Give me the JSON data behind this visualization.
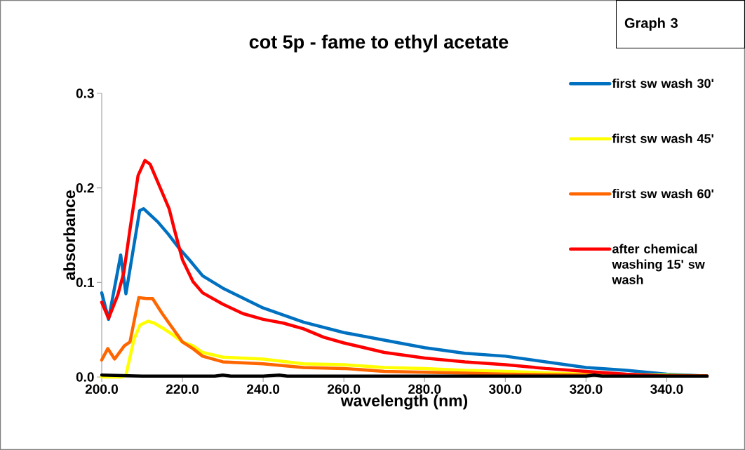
{
  "chart_data": {
    "type": "line",
    "title": "cot 5p - fame to ethyl acetate",
    "xlabel": "wavelength (nm)",
    "ylabel": "absorbance",
    "annotations": [
      "Graph 3"
    ],
    "xlim": [
      200,
      350
    ],
    "ylim": [
      0,
      0.3
    ],
    "xticks": [
      {
        "value": 200,
        "label": "200.0"
      },
      {
        "value": 220,
        "label": "220.0"
      },
      {
        "value": 240,
        "label": "240.0"
      },
      {
        "value": 260,
        "label": "260.0"
      },
      {
        "value": 280,
        "label": "280.0"
      },
      {
        "value": 300,
        "label": "300.0"
      },
      {
        "value": 320,
        "label": "320.0"
      },
      {
        "value": 340,
        "label": "340.0"
      }
    ],
    "yticks": [
      {
        "value": 0,
        "label": "0.0"
      },
      {
        "value": 0.1,
        "label": "0.1"
      },
      {
        "value": 0.2,
        "label": "0.2"
      },
      {
        "value": 0.3,
        "label": "0.3"
      }
    ],
    "grid": false,
    "legend": "top right",
    "marker": "none",
    "line_style": "solid",
    "series": [
      {
        "name": "first sw wash 30'",
        "color": "#0070c0",
        "x": [
          200,
          201.7,
          204.7,
          206,
          209.4,
          210.4,
          213.9,
          216.5,
          219,
          221.7,
          225,
          230,
          240,
          250,
          260,
          270,
          280,
          290,
          300,
          310,
          320,
          330,
          340,
          350
        ],
        "values": [
          0.089,
          0.061,
          0.129,
          0.088,
          0.176,
          0.178,
          0.164,
          0.151,
          0.137,
          0.124,
          0.107,
          0.094,
          0.073,
          0.058,
          0.047,
          0.039,
          0.031,
          0.025,
          0.022,
          0.016,
          0.01,
          0.007,
          0.003,
          0.001
        ]
      },
      {
        "name": "first sw wash 45'",
        "color": "#ffff00",
        "x": [
          200,
          205,
          206,
          208,
          209.5,
          211.5,
          213,
          215,
          217.5,
          220,
          222.6,
          225,
          230,
          240,
          250,
          260,
          270,
          280,
          290,
          300,
          320,
          340,
          350
        ],
        "values": [
          0,
          0,
          0.002,
          0.04,
          0.055,
          0.059,
          0.057,
          0.052,
          0.045,
          0.037,
          0.033,
          0.026,
          0.021,
          0.019,
          0.014,
          0.013,
          0.01,
          0.009,
          0.007,
          0.006,
          0.003,
          0.002,
          0.001
        ]
      },
      {
        "name": "first sw wash 60'",
        "color": "#ff6600",
        "x": [
          200,
          201.5,
          203.2,
          205.6,
          207,
          209.2,
          211,
          212.6,
          215,
          217.5,
          220,
          222.6,
          225,
          230,
          240,
          250,
          260,
          270,
          290,
          300,
          320,
          350
        ],
        "values": [
          0.018,
          0.03,
          0.019,
          0.033,
          0.037,
          0.084,
          0.083,
          0.083,
          0.067,
          0.052,
          0.037,
          0.03,
          0.022,
          0.016,
          0.014,
          0.01,
          0.009,
          0.006,
          0.004,
          0.003,
          0.002,
          0.001
        ]
      },
      {
        "name": "after chemical washing 15' sw wash",
        "color": "#ff0000",
        "x": [
          200,
          201.7,
          204,
          205.5,
          207,
          209,
          210.7,
          212,
          214.5,
          216.7,
          218,
          220,
          222.6,
          225,
          230,
          235,
          240,
          245,
          250,
          255,
          260,
          270,
          280,
          290,
          300,
          310,
          320,
          330,
          340,
          350
        ],
        "values": [
          0.079,
          0.062,
          0.087,
          0.111,
          0.156,
          0.213,
          0.229,
          0.225,
          0.2,
          0.178,
          0.156,
          0.124,
          0.101,
          0.089,
          0.077,
          0.067,
          0.061,
          0.057,
          0.051,
          0.042,
          0.036,
          0.026,
          0.02,
          0.016,
          0.013,
          0.009,
          0.006,
          0.003,
          0.001,
          0.001
        ]
      },
      {
        "color": "#000000",
        "x": [
          200,
          210,
          220,
          228,
          230,
          232,
          240,
          244,
          246,
          260,
          300,
          320,
          322,
          324,
          350
        ],
        "values": [
          0.002,
          0.001,
          0.001,
          0.001,
          0.002,
          0.001,
          0.001,
          0.002,
          0.001,
          0.001,
          0.001,
          0.001,
          0.002,
          0.001,
          0.001
        ]
      }
    ]
  }
}
